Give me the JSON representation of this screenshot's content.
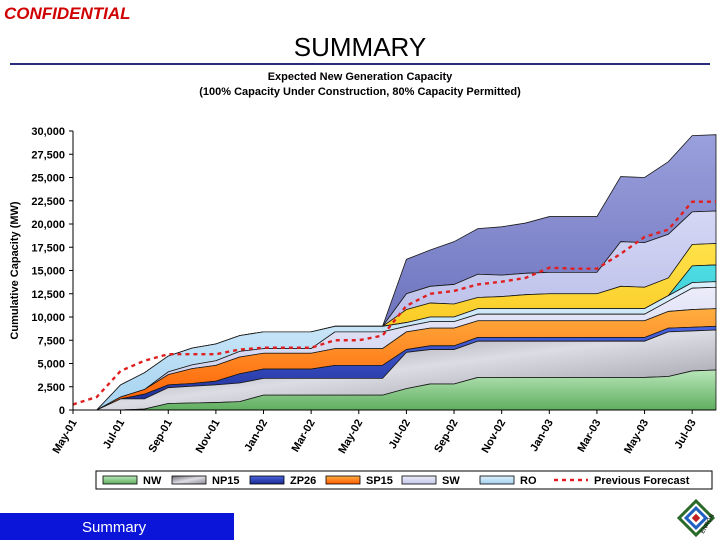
{
  "header": {
    "confidential": "CONFIDENTIAL",
    "title": "SUMMARY"
  },
  "footer": {
    "label": "Summary"
  },
  "colors": {
    "NW": "#8ccf8c",
    "NP15": "#9a9aa6",
    "ZP26": "#2a3fb4",
    "SP15": "#ff7a00",
    "SW": "#d8dbf2",
    "RO": "#b4dcf4",
    "Previous Forecast": "#e02020"
  },
  "chart_data": {
    "type": "area",
    "title": "Expected New Generation Capacity",
    "subtitle": "(100% Capacity Under Construction, 80% Capacity Permitted)",
    "ylabel": "Cumulative Capacity (MW)",
    "xlabel": "",
    "ylim": [
      0,
      30000
    ],
    "yticks": [
      "0",
      "2,500",
      "5,000",
      "7,500",
      "10,000",
      "12,500",
      "15,000",
      "17,500",
      "20,000",
      "22,500",
      "25,000",
      "27,500",
      "30,000"
    ],
    "x_tick_labels": [
      "May-01",
      "Jul-01",
      "Sep-01",
      "Nov-01",
      "Jan-02",
      "Mar-02",
      "May-02",
      "Jul-02",
      "Sep-02",
      "Nov-02",
      "Jan-03",
      "Mar-03",
      "May-03",
      "Jul-03"
    ],
    "x": [
      "May-01",
      "Jun-01",
      "Jul-01",
      "Aug-01",
      "Sep-01",
      "Oct-01",
      "Nov-01",
      "Dec-01",
      "Jan-02",
      "Feb-02",
      "Mar-02",
      "Apr-02",
      "May-02",
      "Jun-02",
      "Jul-02",
      "Aug-02",
      "Sep-02",
      "Oct-02",
      "Nov-02",
      "Dec-02",
      "Jan-03",
      "Feb-03",
      "Mar-03",
      "Apr-03",
      "May-03",
      "Jun-03",
      "Jul-03",
      "Aug-03"
    ],
    "stack_series": [
      {
        "name": "NW",
        "values": [
          0,
          0,
          0,
          100,
          700,
          750,
          800,
          900,
          1600,
          1600,
          1600,
          1600,
          1600,
          1600,
          2300,
          2800,
          2800,
          3500,
          3500,
          3500,
          3500,
          3500,
          3500,
          3500,
          3500,
          3600,
          4200,
          4300
        ]
      },
      {
        "name": "NP15",
        "values": [
          0,
          0,
          1200,
          1100,
          1700,
          1800,
          1900,
          2000,
          1800,
          1800,
          1800,
          1800,
          1800,
          1800,
          3900,
          3700,
          3700,
          3900,
          3900,
          3900,
          3900,
          3900,
          3900,
          3900,
          3900,
          4800,
          4300,
          4300
        ]
      },
      {
        "name": "ZP26",
        "values": [
          0,
          0,
          0,
          500,
          300,
          300,
          400,
          1000,
          1000,
          1000,
          1000,
          1400,
          1400,
          1400,
          300,
          400,
          400,
          400,
          400,
          400,
          400,
          400,
          400,
          400,
          400,
          400,
          400,
          400
        ]
      },
      {
        "name": "SP15",
        "values": [
          0,
          0,
          200,
          500,
          1100,
          1600,
          1700,
          1800,
          1700,
          1700,
          1700,
          1800,
          1800,
          1800,
          1900,
          1900,
          1900,
          1800,
          1800,
          1800,
          1800,
          1800,
          1800,
          1800,
          1800,
          1800,
          1900,
          1900
        ]
      },
      {
        "name": "SW",
        "values": [
          0,
          0,
          0,
          0,
          300,
          400,
          500,
          600,
          500,
          500,
          500,
          1800,
          1800,
          1800,
          600,
          700,
          700,
          700,
          700,
          700,
          700,
          700,
          700,
          700,
          700,
          1100,
          2300,
          2300
        ]
      },
      {
        "name": "RO",
        "values": [
          0,
          0,
          1300,
          1800,
          1700,
          1800,
          1800,
          1700,
          1800,
          1800,
          1800,
          600,
          600,
          600,
          400,
          500,
          500,
          600,
          600,
          600,
          600,
          600,
          600,
          600,
          600,
          600,
          600,
          600
        ]
      },
      {
        "name": "",
        "values": [
          0,
          0,
          0,
          0,
          0,
          0,
          0,
          0,
          0,
          0,
          0,
          0,
          0,
          0,
          3700,
          3900,
          4600,
          4900,
          5200,
          5400,
          6000,
          6000,
          6000,
          7000,
          7000,
          7800,
          8200,
          8200
        ]
      },
      {
        "name": "",
        "values": [
          0,
          0,
          0,
          0,
          0,
          0,
          0,
          0,
          0,
          0,
          0,
          0,
          0,
          0,
          1700,
          1800,
          2100,
          2500,
          2300,
          2300,
          2300,
          2300,
          2300,
          4800,
          4800,
          4700,
          3500,
          3500
        ]
      },
      {
        "name": "",
        "values": [
          0,
          0,
          0,
          0,
          0,
          0,
          0,
          0,
          0,
          0,
          0,
          0,
          0,
          0,
          1400,
          1500,
          1400,
          1200,
          1300,
          1500,
          1600,
          1600,
          1600,
          2400,
          2300,
          1900,
          2300,
          2300
        ]
      },
      {
        "name": "",
        "values": [
          0,
          0,
          0,
          0,
          0,
          0,
          0,
          0,
          0,
          0,
          0,
          0,
          0,
          0,
          0,
          0,
          0,
          0,
          0,
          0,
          0,
          0,
          0,
          0,
          0,
          0,
          1800,
          1800
        ]
      }
    ],
    "extra_fill_colors": [
      "#7a7fc6",
      "#b8bcea",
      "#ffd200",
      "#22c4cc",
      "#9a9aa6",
      "#2e7a2e",
      "#f0e6f6"
    ],
    "line_series": [
      {
        "name": "Previous Forecast",
        "values": [
          600,
          1400,
          4200,
          5300,
          6000,
          6000,
          6000,
          6500,
          6700,
          6700,
          6700,
          7500,
          7500,
          8000,
          11200,
          12500,
          12800,
          13500,
          13800,
          14200,
          15300,
          15200,
          15200,
          16800,
          18600,
          19400,
          22400,
          22400
        ]
      }
    ],
    "legend": [
      "NW",
      "NP15",
      "ZP26",
      "SP15",
      "SW",
      "RO",
      "Previous Forecast"
    ],
    "legend_position": "bottom",
    "grid": false
  }
}
